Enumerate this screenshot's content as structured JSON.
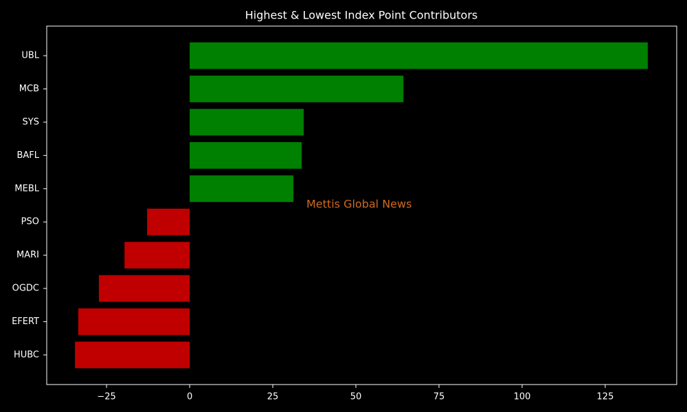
{
  "chart_data": {
    "type": "barh",
    "title": "Highest & Lowest Index Point Contributors",
    "annotation": "Mettis Global News",
    "categories": [
      "UBL",
      "MCB",
      "SYS",
      "BAFL",
      "MEBL",
      "PSO",
      "MARI",
      "OGDC",
      "EFERT",
      "HUBC"
    ],
    "values": [
      137.8,
      64.3,
      34.3,
      33.7,
      31.2,
      -12.8,
      -19.6,
      -27.3,
      -33.5,
      -34.5
    ],
    "colors": [
      "#008000",
      "#008000",
      "#008000",
      "#008000",
      "#008000",
      "#c00000",
      "#c00000",
      "#c00000",
      "#c00000",
      "#c00000"
    ],
    "xlim": [
      -43,
      146.5
    ],
    "xticks": [
      {
        "value": -25,
        "label": "−25"
      },
      0,
      25,
      50,
      75,
      100,
      125
    ],
    "grid": false
  }
}
